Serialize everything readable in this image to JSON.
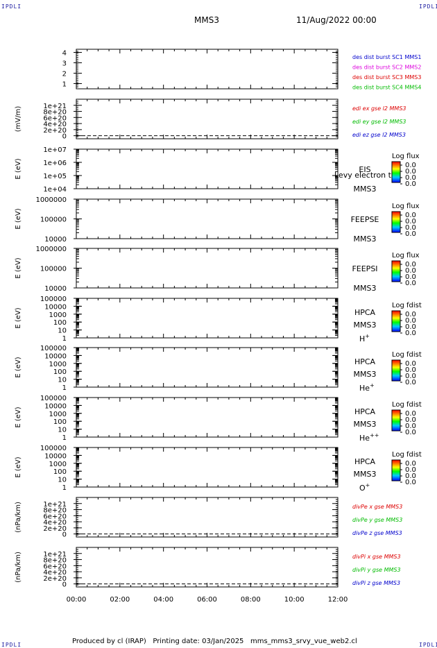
{
  "page": {
    "corner_labels": {
      "top_left": "IPDLI",
      "top_right": "IPDLI",
      "bottom_left": "IPDLI",
      "bottom_right": "IPDLI"
    },
    "header": {
      "spacecraft": "MMS3",
      "datetime": "11/Aug/2022 00:00"
    },
    "footer": {
      "produced_by": "Produced by cl (IRAP)",
      "printing_date": "Printing date: 03/Jan/2025",
      "filename": "mms_mms3_srvy_vue_web2.cl"
    }
  },
  "colors": {
    "blue": "#0000cc",
    "magenta": "#dd00dd",
    "red": "#dd0000",
    "green": "#00bb00",
    "black": "#000000"
  },
  "chart_data": [
    {
      "type": "line",
      "id": "fpi-burst",
      "x_ticks": [
        "00:00",
        "02:00",
        "04:00",
        "06:00",
        "08:00",
        "10:00",
        "12:00"
      ],
      "ylabel": "",
      "y_scale": "linear",
      "ylim": [
        0.5,
        4.3
      ],
      "y_ticks": [
        "4",
        "3",
        "2",
        "1"
      ],
      "legend": [
        {
          "text": "des dist burst SC1 MMS1",
          "color": "#0000cc"
        },
        {
          "text": "des dist burst SC2 MMS2",
          "color": "#dd00dd"
        },
        {
          "text": "des dist burst SC3 MMS3",
          "color": "#dd0000"
        },
        {
          "text": "des dist burst SC4 MMS4",
          "color": "#00bb00"
        }
      ],
      "series": []
    },
    {
      "type": "line",
      "id": "edi-e",
      "ylabel": "(mV/m)",
      "y_scale": "linear",
      "ylim": [
        -1e+20,
        1.2e+21
      ],
      "y_ticks": [
        "1e+21",
        "8e+20",
        "6e+20",
        "4e+20",
        "2e+20",
        "0"
      ],
      "zero_line": true,
      "legend": [
        {
          "text": "edi ex gse l2 MMS3",
          "color": "#dd0000"
        },
        {
          "text": "edi ey gse l2 MMS3",
          "color": "#00bb00"
        },
        {
          "text": "edi ez gse l2 MMS3",
          "color": "#0000cc"
        }
      ],
      "series": []
    },
    {
      "type": "heatmap",
      "id": "eis",
      "ylabel": "E (eV)",
      "y_scale": "log",
      "ylim": [
        10000.0,
        10000000.0
      ],
      "y_ticks": [
        "1e+07",
        "1e+06",
        "1e+05",
        "1e+04"
      ],
      "right_labels": [
        "EIS",
        "MMS3"
      ],
      "right_extra": "Levy electron to",
      "colorbar": {
        "title": "Log flux",
        "ticks": [
          "0.0",
          "0.0",
          "0.0",
          "0.0"
        ]
      }
    },
    {
      "type": "heatmap",
      "id": "feeps-e",
      "ylabel": "E (eV)",
      "y_scale": "log",
      "ylim": [
        10000.0,
        1000000.0
      ],
      "y_ticks": [
        "1000000",
        "100000",
        "10000"
      ],
      "right_labels": [
        "FEEPSE",
        "MMS3"
      ],
      "colorbar": {
        "title": "Log flux",
        "ticks": [
          "0.0",
          "0.0",
          "0.0",
          "0.0"
        ]
      }
    },
    {
      "type": "heatmap",
      "id": "feeps-i",
      "ylabel": "E (eV)",
      "y_scale": "log",
      "ylim": [
        10000.0,
        1000000.0
      ],
      "y_ticks": [
        "1000000",
        "100000",
        "10000"
      ],
      "right_labels": [
        "FEEPSI",
        "MMS3"
      ],
      "colorbar": {
        "title": "Log flux",
        "ticks": [
          "0.0",
          "0.0",
          "0.0",
          "0.0"
        ]
      }
    },
    {
      "type": "heatmap",
      "id": "hpca-h",
      "ylabel": "E (eV)",
      "y_scale": "log",
      "ylim": [
        1,
        100000.0
      ],
      "y_ticks": [
        "100000",
        "10000",
        "1000",
        "100",
        "10",
        "1"
      ],
      "right_labels": [
        "HPCA",
        "MMS3"
      ],
      "species": "H",
      "species_sup": "+",
      "colorbar": {
        "title": "Log fdist",
        "ticks": [
          "0.0",
          "0.0",
          "0.0",
          "0.0"
        ]
      }
    },
    {
      "type": "heatmap",
      "id": "hpca-he1",
      "ylabel": "E (eV)",
      "y_scale": "log",
      "ylim": [
        1,
        100000.0
      ],
      "y_ticks": [
        "100000",
        "10000",
        "1000",
        "100",
        "10",
        "1"
      ],
      "right_labels": [
        "HPCA",
        "MMS3"
      ],
      "species": "He",
      "species_sup": "+",
      "colorbar": {
        "title": "Log fdist",
        "ticks": [
          "0.0",
          "0.0",
          "0.0",
          "0.0"
        ]
      }
    },
    {
      "type": "heatmap",
      "id": "hpca-he2",
      "ylabel": "E (eV)",
      "y_scale": "log",
      "ylim": [
        1,
        100000.0
      ],
      "y_ticks": [
        "100000",
        "10000",
        "1000",
        "100",
        "10",
        "1"
      ],
      "right_labels": [
        "HPCA",
        "MMS3"
      ],
      "species": "He",
      "species_sup": "++",
      "colorbar": {
        "title": "Log fdist",
        "ticks": [
          "0.0",
          "0.0",
          "0.0",
          "0.0"
        ]
      }
    },
    {
      "type": "heatmap",
      "id": "hpca-o",
      "ylabel": "E (eV)",
      "y_scale": "log",
      "ylim": [
        1,
        100000.0
      ],
      "y_ticks": [
        "100000",
        "10000",
        "1000",
        "100",
        "10",
        "1"
      ],
      "right_labels": [
        "HPCA",
        "MMS3"
      ],
      "species": "O",
      "species_sup": "+",
      "colorbar": {
        "title": "Log fdist",
        "ticks": [
          "0.0",
          "0.0",
          "0.0",
          "0.0"
        ]
      }
    },
    {
      "type": "line",
      "id": "divpe",
      "ylabel": "(nPa/km)",
      "y_scale": "linear",
      "ylim": [
        -1e+20,
        1.2e+21
      ],
      "y_ticks": [
        "1e+21",
        "8e+20",
        "6e+20",
        "4e+20",
        "2e+20",
        "0"
      ],
      "zero_line": true,
      "legend": [
        {
          "text": "divPe x gse MMS3",
          "color": "#dd0000"
        },
        {
          "text": "divPe y gse MMS3",
          "color": "#00bb00"
        },
        {
          "text": "divPe z gse MMS3",
          "color": "#0000cc"
        }
      ],
      "series": []
    },
    {
      "type": "line",
      "id": "divpi",
      "ylabel": "(nPa/km)",
      "y_scale": "linear",
      "ylim": [
        -1e+20,
        1.2e+21
      ],
      "y_ticks": [
        "1e+21",
        "8e+20",
        "6e+20",
        "4e+20",
        "2e+20",
        "0"
      ],
      "zero_line": true,
      "legend": [
        {
          "text": "divPi x gse MMS3",
          "color": "#dd0000"
        },
        {
          "text": "divPi y gse MMS3",
          "color": "#00bb00"
        },
        {
          "text": "divPi z gse MMS3",
          "color": "#0000cc"
        }
      ],
      "series": []
    }
  ]
}
